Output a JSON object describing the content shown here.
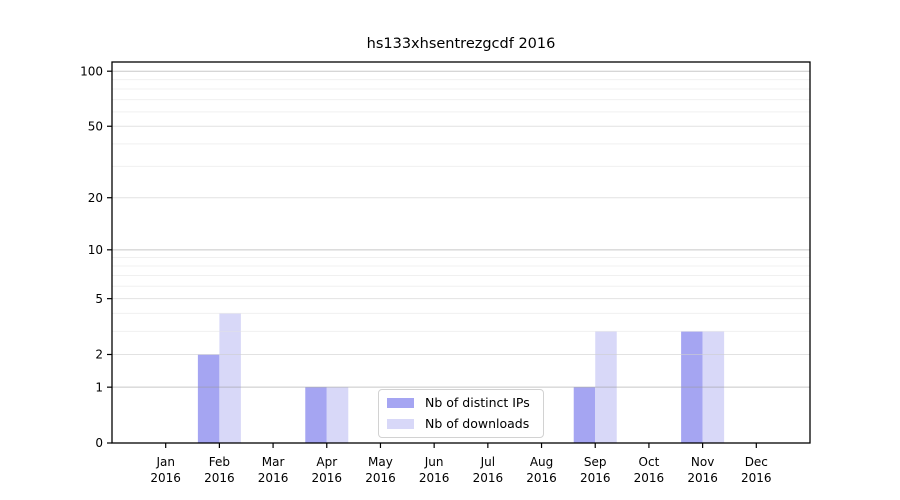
{
  "chart_data": {
    "type": "bar",
    "title": "hs133xhsentrezgcdf 2016",
    "categories": [
      "Jan 2016",
      "Feb 2016",
      "Mar 2016",
      "Apr 2016",
      "May 2016",
      "Jun 2016",
      "Jul 2016",
      "Aug 2016",
      "Sep 2016",
      "Oct 2016",
      "Nov 2016",
      "Dec 2016"
    ],
    "series": [
      {
        "name": "Nb of distinct IPs",
        "color": "#a5a5f2",
        "values": [
          0,
          2,
          0,
          1,
          0,
          0,
          0,
          0,
          1,
          0,
          3,
          0
        ]
      },
      {
        "name": "Nb of downloads",
        "color": "#d8d8f8",
        "values": [
          0,
          4,
          0,
          1,
          0,
          0,
          0,
          0,
          3,
          0,
          3,
          0
        ]
      }
    ],
    "xlabel": "",
    "ylabel": "",
    "y_axis": {
      "scale": "log1p",
      "ylim": [
        0,
        115
      ],
      "tick_labels": [
        0,
        1,
        2,
        5,
        10,
        20,
        50,
        100
      ],
      "decade_gridlines": [
        1,
        10,
        100
      ],
      "major_gridlines": [
        2,
        5,
        20,
        50
      ],
      "minor_gridlines": [
        3,
        4,
        6,
        7,
        8,
        9,
        30,
        40,
        60,
        70,
        80,
        90
      ]
    },
    "grid": true,
    "legend_position": "bottom-center",
    "colors": {
      "spine": "#000000",
      "tick_text": "#000000",
      "decade_grid": "#c9c9c9",
      "major_grid": "#e2e2e2",
      "minor_grid": "#f0f0f0"
    }
  }
}
